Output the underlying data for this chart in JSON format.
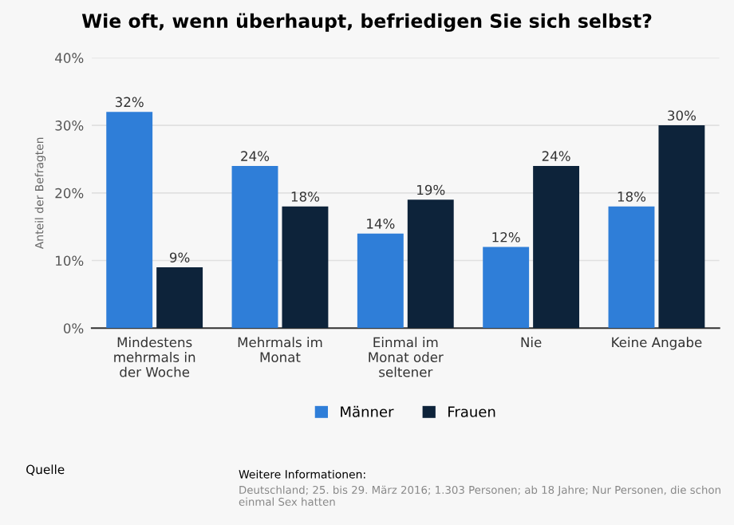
{
  "chart_data": {
    "type": "bar",
    "title": "Wie oft, wenn überhaupt, befriedigen Sie sich selbst?",
    "ylabel": "Anteil der Befragten",
    "categories": [
      "Mindestens mehrmals in der Woche",
      "Mehrmals im Monat",
      "Einmal im Monat oder seltener",
      "Nie",
      "Keine Angabe"
    ],
    "series": [
      {
        "name": "Männer",
        "color": "#2f7ed8",
        "values": [
          32,
          24,
          14,
          12,
          18
        ],
        "value_labels": [
          "32%",
          "24%",
          "14%",
          "12%",
          "18%"
        ]
      },
      {
        "name": "Frauen",
        "color": "#0d233a",
        "values": [
          9,
          18,
          19,
          24,
          30
        ],
        "value_labels": [
          "9%",
          "18%",
          "19%",
          "24%",
          "30%"
        ]
      }
    ],
    "ylim": [
      0,
      40
    ],
    "yticks": [
      {
        "value": 0,
        "label": "0%"
      },
      {
        "value": 10,
        "label": "10%"
      },
      {
        "value": 20,
        "label": "20%"
      },
      {
        "value": 30,
        "label": "30%"
      },
      {
        "value": 40,
        "label": "40%"
      }
    ],
    "grid": "y",
    "legend": "bottom",
    "annotations": [
      "Quelle",
      "Weitere Informationen:",
      "Deutschland; 25. bis 29. März 2016; 1.303 Personen; ab 18 Jahre; Nur Personen, die schon einmal Sex hatten"
    ]
  }
}
